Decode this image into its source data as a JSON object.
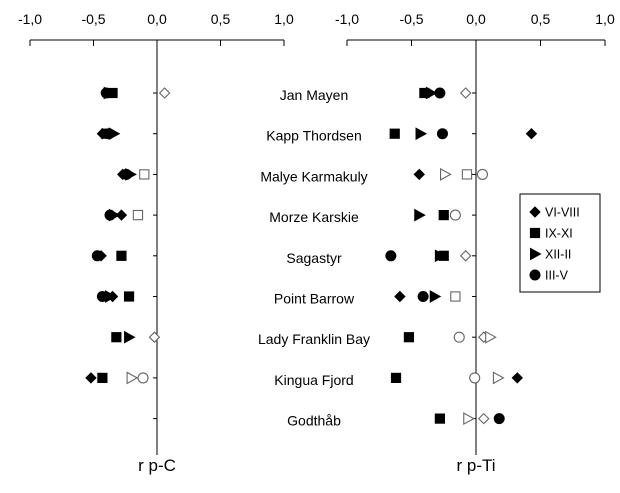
{
  "chart_data": {
    "type": "scatter",
    "stations": [
      "Jan Mayen",
      "Kapp Thordsen",
      "Malye Karmakuly",
      "Morze Karskie",
      "Sagastyr",
      "Point Barrow",
      "Lady Franklin Bay",
      "Kingua Fjord",
      "Godthåb"
    ],
    "seasons": [
      {
        "key": "VI-VIII",
        "name": "VI-VIII",
        "marker": "diamond"
      },
      {
        "key": "IX-XI",
        "name": "IX-XI",
        "marker": "square"
      },
      {
        "key": "XII-II",
        "name": "XII-II",
        "marker": "triangle"
      },
      {
        "key": "III-V",
        "name": "III-V",
        "marker": "circle"
      }
    ],
    "panels": [
      {
        "name": "r p-C",
        "xlabel": "r p-C",
        "xlim": [
          -1.0,
          1.0
        ],
        "ticks": [
          "-1,0",
          "-0,5",
          "0,0",
          "0,5",
          "1,0"
        ],
        "tick_values": [
          -1.0,
          -0.5,
          0.0,
          0.5,
          1.0
        ],
        "points": [
          {
            "station": "Jan Mayen",
            "season": "VI-VIII",
            "value": 0.06,
            "significant": false
          },
          {
            "station": "Jan Mayen",
            "season": "IX-XI",
            "value": -0.35,
            "significant": true
          },
          {
            "station": "Jan Mayen",
            "season": "XII-II",
            "value": -0.38,
            "significant": true
          },
          {
            "station": "Jan Mayen",
            "season": "III-V",
            "value": -0.4,
            "significant": true
          },
          {
            "station": "Kapp Thordsen",
            "season": "VI-VIII",
            "value": -0.43,
            "significant": true
          },
          {
            "station": "Kapp Thordsen",
            "season": "IX-XI",
            "value": -0.4,
            "significant": true
          },
          {
            "station": "Kapp Thordsen",
            "season": "XII-II",
            "value": -0.34,
            "significant": true
          },
          {
            "station": "Kapp Thordsen",
            "season": "III-V",
            "value": -0.38,
            "significant": true
          },
          {
            "station": "Malye Karmakuly",
            "season": "VI-VIII",
            "value": -0.27,
            "significant": true
          },
          {
            "station": "Malye Karmakuly",
            "season": "IX-XI",
            "value": -0.1,
            "significant": false
          },
          {
            "station": "Malye Karmakuly",
            "season": "XII-II",
            "value": -0.21,
            "significant": true
          },
          {
            "station": "Malye Karmakuly",
            "season": "III-V",
            "value": -0.24,
            "significant": true
          },
          {
            "station": "Morze Karskie",
            "season": "VI-VIII",
            "value": -0.28,
            "significant": true
          },
          {
            "station": "Morze Karskie",
            "season": "IX-XI",
            "value": -0.15,
            "significant": false
          },
          {
            "station": "Morze Karskie",
            "season": "XII-II",
            "value": -0.34,
            "significant": true
          },
          {
            "station": "Morze Karskie",
            "season": "III-V",
            "value": -0.37,
            "significant": true
          },
          {
            "station": "Sagastyr",
            "season": "VI-VIII",
            "value": -0.44,
            "significant": true
          },
          {
            "station": "Sagastyr",
            "season": "IX-XI",
            "value": -0.28,
            "significant": true
          },
          {
            "station": "Sagastyr",
            "season": "III-V",
            "value": -0.47,
            "significant": true
          },
          {
            "station": "Point Barrow",
            "season": "VI-VIII",
            "value": -0.35,
            "significant": true
          },
          {
            "station": "Point Barrow",
            "season": "IX-XI",
            "value": -0.22,
            "significant": true
          },
          {
            "station": "Point Barrow",
            "season": "XII-II",
            "value": -0.37,
            "significant": true
          },
          {
            "station": "Point Barrow",
            "season": "III-V",
            "value": -0.43,
            "significant": true
          },
          {
            "station": "Lady Franklin Bay",
            "season": "VI-VIII",
            "value": -0.02,
            "significant": false
          },
          {
            "station": "Lady Franklin Bay",
            "season": "IX-XI",
            "value": -0.32,
            "significant": true
          },
          {
            "station": "Lady Franklin Bay",
            "season": "XII-II",
            "value": -0.22,
            "significant": true
          },
          {
            "station": "Kingua Fjord",
            "season": "VI-VIII",
            "value": -0.52,
            "significant": true
          },
          {
            "station": "Kingua Fjord",
            "season": "IX-XI",
            "value": -0.43,
            "significant": true
          },
          {
            "station": "Kingua Fjord",
            "season": "XII-II",
            "value": -0.2,
            "significant": false
          },
          {
            "station": "Kingua Fjord",
            "season": "III-V",
            "value": -0.11,
            "significant": false
          }
        ]
      },
      {
        "name": "r p-Ti",
        "xlabel": "r p-Ti",
        "xlim": [
          -1.0,
          1.0
        ],
        "ticks": [
          "-1,0",
          "-0,5",
          "0,0",
          "0,5",
          "1,0"
        ],
        "tick_values": [
          -1.0,
          -0.5,
          0.0,
          0.5,
          1.0
        ],
        "points": [
          {
            "station": "Jan Mayen",
            "season": "VI-VIII",
            "value": -0.08,
            "significant": false
          },
          {
            "station": "Jan Mayen",
            "season": "IX-XI",
            "value": -0.4,
            "significant": true
          },
          {
            "station": "Jan Mayen",
            "season": "XII-II",
            "value": -0.35,
            "significant": true
          },
          {
            "station": "Jan Mayen",
            "season": "III-V",
            "value": -0.28,
            "significant": true
          },
          {
            "station": "Kapp Thordsen",
            "season": "VI-VIII",
            "value": 0.43,
            "significant": true
          },
          {
            "station": "Kapp Thordsen",
            "season": "IX-XI",
            "value": -0.63,
            "significant": true
          },
          {
            "station": "Kapp Thordsen",
            "season": "XII-II",
            "value": -0.43,
            "significant": true
          },
          {
            "station": "Kapp Thordsen",
            "season": "III-V",
            "value": -0.26,
            "significant": true
          },
          {
            "station": "Malye Karmakuly",
            "season": "VI-VIII",
            "value": -0.44,
            "significant": true
          },
          {
            "station": "Malye Karmakuly",
            "season": "IX-XI",
            "value": -0.07,
            "significant": false
          },
          {
            "station": "Malye Karmakuly",
            "season": "XII-II",
            "value": -0.24,
            "significant": false
          },
          {
            "station": "Malye Karmakuly",
            "season": "III-V",
            "value": 0.05,
            "significant": false
          },
          {
            "station": "Morze Karskie",
            "season": "IX-XI",
            "value": -0.25,
            "significant": true
          },
          {
            "station": "Morze Karskie",
            "season": "XII-II",
            "value": -0.44,
            "significant": true
          },
          {
            "station": "Morze Karskie",
            "season": "III-V",
            "value": -0.16,
            "significant": false
          },
          {
            "station": "Sagastyr",
            "season": "VI-VIII",
            "value": -0.08,
            "significant": false
          },
          {
            "station": "Sagastyr",
            "season": "IX-XI",
            "value": -0.25,
            "significant": true
          },
          {
            "station": "Sagastyr",
            "season": "XII-II",
            "value": -0.28,
            "significant": true
          },
          {
            "station": "Sagastyr",
            "season": "III-V",
            "value": -0.66,
            "significant": true
          },
          {
            "station": "Point Barrow",
            "season": "VI-VIII",
            "value": -0.59,
            "significant": true
          },
          {
            "station": "Point Barrow",
            "season": "IX-XI",
            "value": -0.16,
            "significant": false
          },
          {
            "station": "Point Barrow",
            "season": "XII-II",
            "value": -0.32,
            "significant": true
          },
          {
            "station": "Point Barrow",
            "season": "III-V",
            "value": -0.41,
            "significant": true
          },
          {
            "station": "Lady Franklin Bay",
            "season": "VI-VIII",
            "value": 0.06,
            "significant": false
          },
          {
            "station": "Lady Franklin Bay",
            "season": "IX-XI",
            "value": -0.52,
            "significant": true
          },
          {
            "station": "Lady Franklin Bay",
            "season": "XII-II",
            "value": 0.11,
            "significant": false
          },
          {
            "station": "Lady Franklin Bay",
            "season": "III-V",
            "value": -0.13,
            "significant": false
          },
          {
            "station": "Kingua Fjord",
            "season": "VI-VIII",
            "value": 0.32,
            "significant": true
          },
          {
            "station": "Kingua Fjord",
            "season": "IX-XI",
            "value": -0.62,
            "significant": true
          },
          {
            "station": "Kingua Fjord",
            "season": "XII-II",
            "value": 0.17,
            "significant": false
          },
          {
            "station": "Kingua Fjord",
            "season": "III-V",
            "value": -0.01,
            "significant": false
          },
          {
            "station": "Godthåb",
            "season": "VI-VIII",
            "value": 0.06,
            "significant": false
          },
          {
            "station": "Godthåb",
            "season": "IX-XI",
            "value": -0.28,
            "significant": true
          },
          {
            "station": "Godthåb",
            "season": "XII-II",
            "value": -0.06,
            "significant": false
          },
          {
            "station": "Godthåb",
            "season": "III-V",
            "value": 0.18,
            "significant": true
          }
        ]
      }
    ],
    "legend": {
      "placement": "right",
      "labels": [
        "VI-VIII",
        "IX-XI",
        "XII-II",
        "III-V"
      ]
    },
    "grid": false
  }
}
